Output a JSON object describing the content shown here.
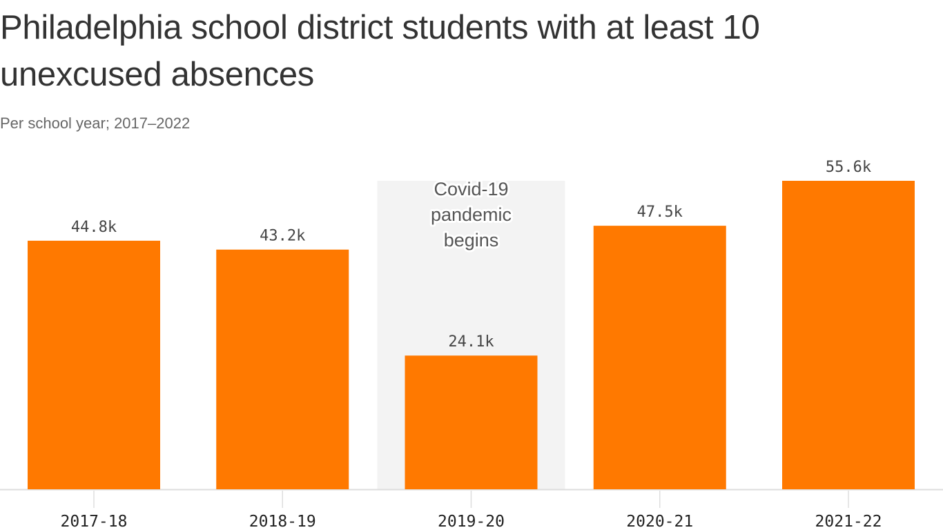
{
  "chart_data": {
    "type": "bar",
    "title": "Philadelphia school district students with at least 10 unexcused absences",
    "subtitle": "Per school year; 2017–2022",
    "categories": [
      "2017-18",
      "2018-19",
      "2019-20",
      "2020-21",
      "2021-22"
    ],
    "values": [
      44.8,
      43.2,
      24.1,
      47.5,
      55.6
    ],
    "value_labels": [
      "44.8k",
      "43.2k",
      "24.1k",
      "47.5k",
      "55.6k"
    ],
    "unit": "thousand students",
    "ylim": [
      0,
      55.6
    ],
    "grid": false,
    "bar_color": "#ff7900",
    "annotation": {
      "category": "2019-20",
      "lines": [
        "Covid-19",
        "pandemic",
        "begins"
      ],
      "shade_color": "#f3f3f3"
    }
  }
}
